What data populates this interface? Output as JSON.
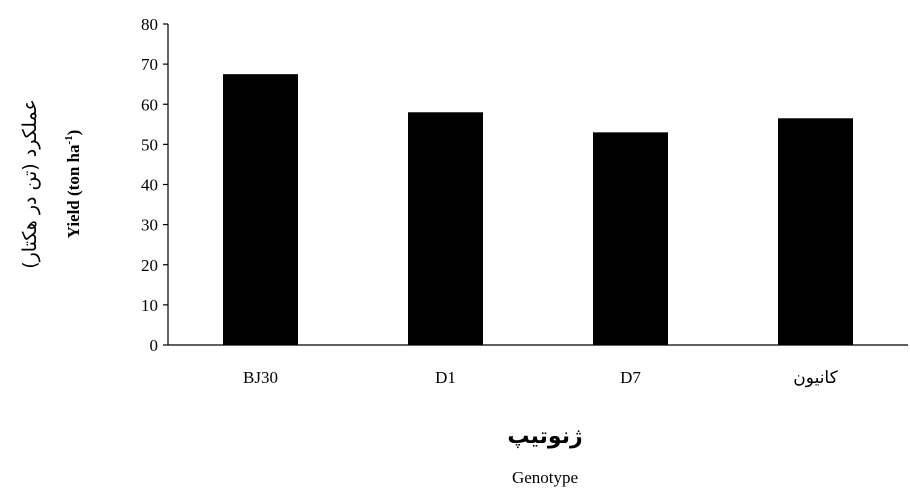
{
  "chart_data": {
    "type": "bar",
    "categories": [
      "BJ30",
      "D1",
      "D7",
      "کانیون"
    ],
    "values": [
      67.5,
      58,
      53,
      56.5
    ],
    "ylim": [
      0,
      80
    ],
    "yticks": [
      0,
      10,
      20,
      30,
      40,
      50,
      60,
      70,
      80
    ],
    "xlabel_fa": "ژنوتیپ",
    "xlabel_en": "Genotype",
    "ylabel_fa": "عملکرد (تن در هکتار)",
    "ylabel_en_main": "Yield  (ton ha",
    "ylabel_en_sup": "-1",
    "ylabel_en_close": ")",
    "grid": false,
    "bar_color": "#000000"
  }
}
